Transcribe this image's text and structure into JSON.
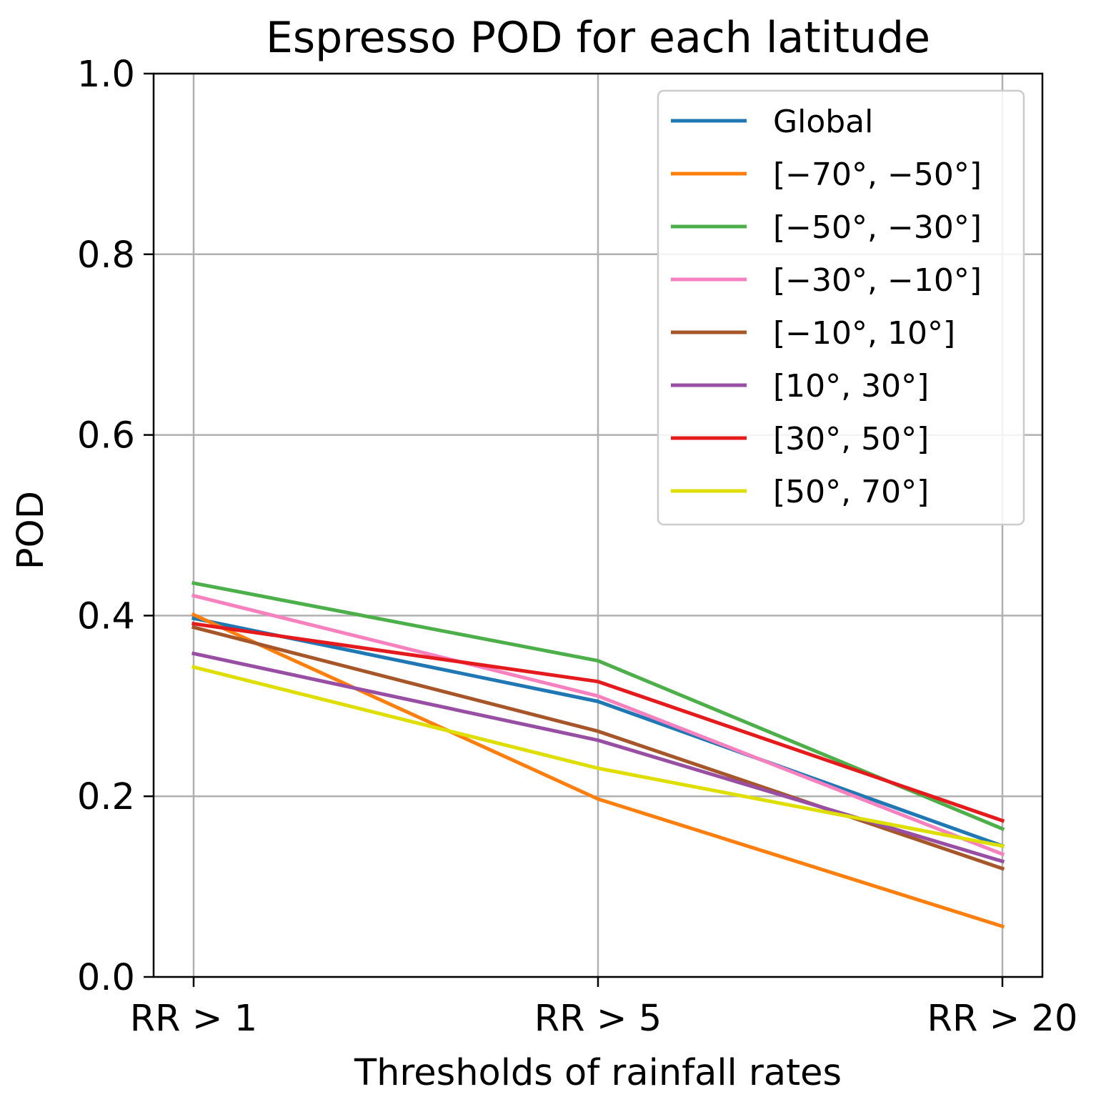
{
  "chart_data": {
    "type": "line",
    "title": "Espresso POD for each latitude",
    "xlabel": "Thresholds of rainfall rates",
    "ylabel": "POD",
    "categories": [
      "RR > 1",
      "RR > 5",
      "RR > 20"
    ],
    "ylim": [
      0.0,
      1.0
    ],
    "yticks": [
      "0.0",
      "0.2",
      "0.4",
      "0.6",
      "0.8",
      "1.0"
    ],
    "yticks_values": [
      0.0,
      0.2,
      0.4,
      0.6,
      0.8,
      1.0
    ],
    "grid": true,
    "legend_position": "top-right",
    "series": [
      {
        "name": "Global",
        "color": "#1f77b4",
        "values": [
          0.397,
          0.305,
          0.145
        ]
      },
      {
        "name": "[−70°, −50°]",
        "color": "#ff7f0e",
        "values": [
          0.401,
          0.197,
          0.056
        ]
      },
      {
        "name": "[−50°, −30°]",
        "color": "#4daf4a",
        "values": [
          0.436,
          0.35,
          0.164
        ]
      },
      {
        "name": "[−30°, −10°]",
        "color": "#f781bf",
        "values": [
          0.422,
          0.311,
          0.136
        ]
      },
      {
        "name": "[−10°, 10°]",
        "color": "#a65628",
        "values": [
          0.387,
          0.272,
          0.12
        ]
      },
      {
        "name": "[10°, 30°]",
        "color": "#984ea3",
        "values": [
          0.358,
          0.262,
          0.128
        ]
      },
      {
        "name": "[30°, 50°]",
        "color": "#e41a1c",
        "values": [
          0.391,
          0.327,
          0.173
        ]
      },
      {
        "name": "[50°, 70°]",
        "color": "#dede00",
        "values": [
          0.343,
          0.231,
          0.145
        ]
      }
    ]
  }
}
